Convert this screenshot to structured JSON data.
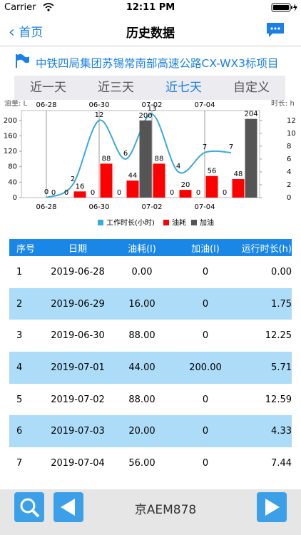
{
  "status": {
    "carrier": "Carrier",
    "time": "12:11 PM"
  },
  "nav": {
    "back": "首页",
    "title": "历史数据"
  },
  "project": "中铁四局集团苏锡常南部高速公路CX-WX3标项目",
  "tabs": {
    "items": [
      "近一天",
      "近三天",
      "近七天",
      "自定义"
    ],
    "active": 2
  },
  "chart_data": {
    "type": "bar",
    "ylabel": "油量: L",
    "y2label": "时长: h",
    "categories": [
      "06-28",
      null,
      "06-30",
      null,
      "07-02",
      null,
      "07-04",
      null
    ],
    "series": [
      {
        "name": "工作时长(小时)",
        "type": "line",
        "axis": "y2",
        "color": "#3aa9dc",
        "values": [
          0,
          2,
          12,
          6,
          13,
          4,
          7,
          7
        ]
      },
      {
        "name": "油耗",
        "color": "#ff0000",
        "values": [
          0,
          16,
          88,
          44,
          88,
          20,
          56,
          48
        ]
      },
      {
        "name": "加油",
        "color": "#555555",
        "values": [
          0,
          0,
          0,
          200,
          0,
          0,
          0,
          204
        ]
      }
    ],
    "ylim": [
      0,
      220
    ],
    "yticks": [
      0,
      40,
      80,
      120,
      160,
      200
    ],
    "y2lim": [
      0,
      13.2
    ],
    "y2ticks": [
      0,
      2,
      4,
      6,
      8,
      10,
      12
    ],
    "legend": "bottom"
  },
  "table": {
    "header": [
      "序号",
      "日期",
      "油耗(l)",
      "加油(l)",
      "运行时长(h)"
    ],
    "rows": [
      [
        "1",
        "2019-06-28",
        "0.00",
        "0",
        "0.00"
      ],
      [
        "2",
        "2019-06-29",
        "16.00",
        "0",
        "1.75"
      ],
      [
        "3",
        "2019-06-30",
        "88.00",
        "0",
        "12.25"
      ],
      [
        "4",
        "2019-07-01",
        "44.00",
        "200.00",
        "5.71"
      ],
      [
        "5",
        "2019-07-02",
        "88.00",
        "0",
        "12.59"
      ],
      [
        "6",
        "2019-07-03",
        "20.00",
        "0",
        "4.33"
      ],
      [
        "7",
        "2019-07-04",
        "56.00",
        "0",
        "7.44"
      ]
    ]
  },
  "footer": {
    "plate": "京AEM878"
  }
}
